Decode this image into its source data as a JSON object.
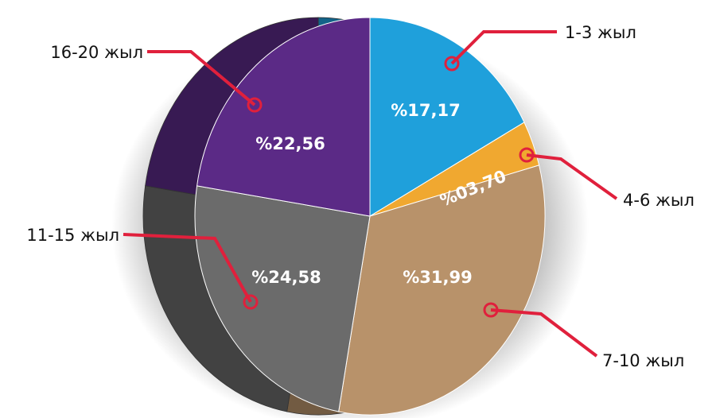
{
  "chart_data": {
    "type": "pie",
    "categories": [
      "1-3 жыл",
      "4-6 жыл",
      "7-10 жыл",
      "11-15 жыл",
      "16-20 жыл"
    ],
    "values": [
      17.17,
      3.7,
      31.99,
      24.58,
      22.56
    ],
    "value_labels": [
      "%17,17",
      "%03,70",
      "%31,99",
      "%24,58",
      "%22,56"
    ],
    "colors": [
      "#1fa0db",
      "#f0a830",
      "#b8926a",
      "#6b6b6b",
      "#5b2a86"
    ]
  }
}
